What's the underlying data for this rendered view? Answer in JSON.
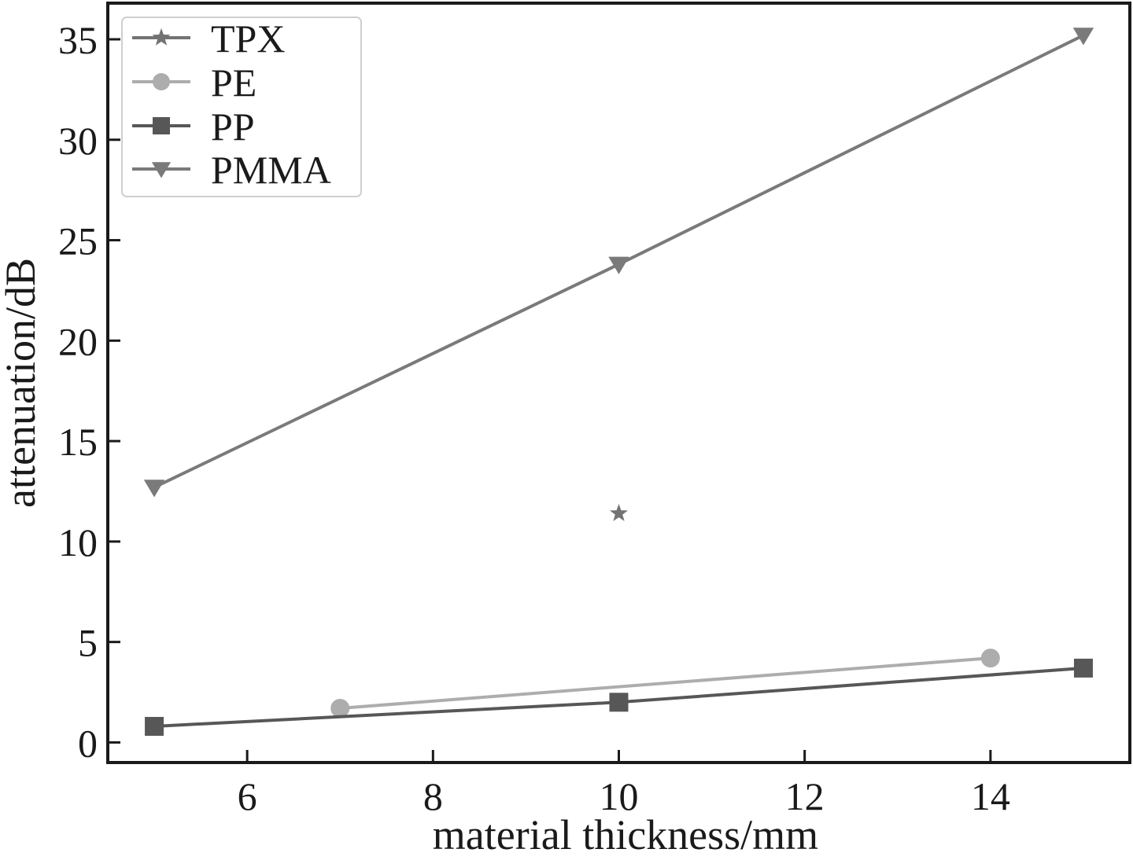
{
  "chart_data": {
    "type": "line",
    "title": "",
    "xlabel": "material thickness/mm",
    "ylabel": "attenuation/dB",
    "xlim": [
      4.5,
      15.5
    ],
    "ylim": [
      -1,
      36.8
    ],
    "xticks": [
      6,
      8,
      10,
      12,
      14
    ],
    "yticks": [
      0,
      5,
      10,
      15,
      20,
      25,
      30,
      35
    ],
    "grid": false,
    "legend_position": "top-left",
    "series": [
      {
        "name": "TPX",
        "marker": "star",
        "color": "#737373",
        "x": [
          10
        ],
        "y": [
          11.4
        ]
      },
      {
        "name": "PE",
        "marker": "circle",
        "color": "#adadad",
        "x": [
          7,
          14
        ],
        "y": [
          1.7,
          4.2
        ]
      },
      {
        "name": "PP",
        "marker": "square",
        "color": "#575757",
        "x": [
          5,
          10,
          15
        ],
        "y": [
          0.8,
          2.0,
          3.7
        ]
      },
      {
        "name": "PMMA",
        "marker": "triangle-down",
        "color": "#7a7a7a",
        "x": [
          5,
          10,
          15
        ],
        "y": [
          12.7,
          23.8,
          35.2
        ]
      }
    ]
  }
}
